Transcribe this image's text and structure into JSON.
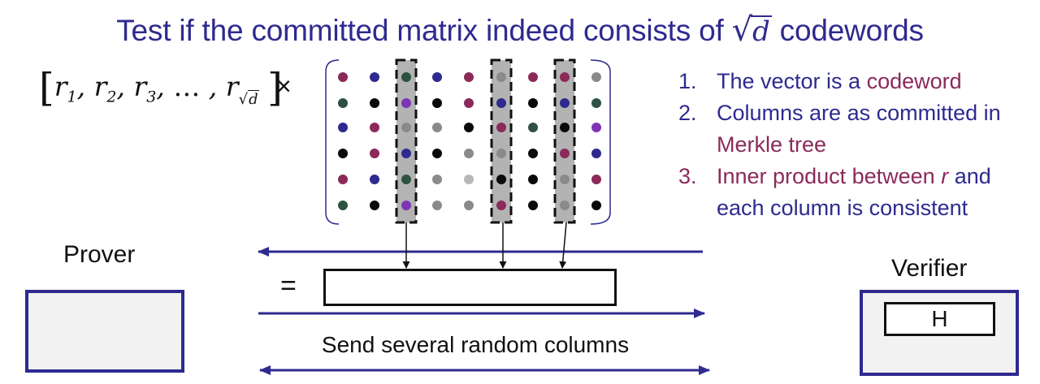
{
  "title": {
    "prefix": "Test if the committed matrix indeed consists of",
    "radical": "√",
    "radicand": "d",
    "suffix": "codewords"
  },
  "vector": {
    "open": "[",
    "r": "r",
    "subs": [
      "1",
      "2",
      "3"
    ],
    "ellipsis": "…",
    "last_sub_radical": "√",
    "last_sub_radicand": "d",
    "close": "]"
  },
  "times_symbol": "×",
  "matrix": {
    "colors": {
      "maroon": "#8b2a5a",
      "blue": "#2e2a8f",
      "green": "#2d5242",
      "black": "#0a0a0a",
      "gray": "#8a8a8a",
      "purple": "#7d35b5",
      "lightgray": "#b8b8b8"
    },
    "rows": [
      [
        "maroon",
        "blue",
        "green",
        "blue",
        "maroon",
        "gray",
        "maroon",
        "maroon",
        "gray"
      ],
      [
        "green",
        "black",
        "purple",
        "black",
        "maroon",
        "blue",
        "black",
        "blue",
        "green"
      ],
      [
        "blue",
        "maroon",
        "gray",
        "gray",
        "black",
        "maroon",
        "green",
        "black",
        "purple"
      ],
      [
        "black",
        "maroon",
        "blue",
        "black",
        "gray",
        "gray",
        "black",
        "maroon",
        "blue"
      ],
      [
        "maroon",
        "blue",
        "green",
        "gray",
        "lightgray",
        "black",
        "black",
        "gray",
        "maroon"
      ],
      [
        "green",
        "black",
        "purple",
        "gray",
        "gray",
        "maroon",
        "black",
        "gray",
        "black"
      ]
    ],
    "highlighted_columns": [
      2,
      5,
      7
    ]
  },
  "checks": [
    {
      "num": "1.",
      "parts": [
        {
          "text": "The vector is a ",
          "tone": "blue"
        },
        {
          "text": "codeword",
          "tone": "maroon"
        }
      ]
    },
    {
      "num": "2.",
      "parts": [
        {
          "text": "Columns are as committed in ",
          "tone": "blue"
        },
        {
          "text": "Merkle tree",
          "tone": "maroon"
        }
      ]
    },
    {
      "num": "3.",
      "parts": [
        {
          "text": "Inner product between ",
          "tone": "maroon"
        },
        {
          "text": "r",
          "tone": "maroon-italic"
        },
        {
          "text": " and each column is consistent",
          "tone": "blue"
        }
      ]
    }
  ],
  "prover_label": "Prover",
  "verifier_label": "Verifier",
  "equals_symbol": "=",
  "hash_label": "H",
  "send_label": "Send several random columns",
  "arrow_color": "#2e2a8f"
}
